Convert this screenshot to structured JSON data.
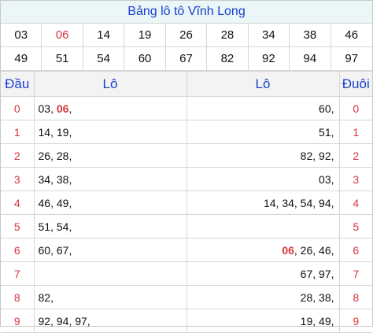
{
  "title": "Bảng lô tô Vĩnh Long",
  "numbers": [
    {
      "v": "03",
      "red": false
    },
    {
      "v": "06",
      "red": true
    },
    {
      "v": "14",
      "red": false
    },
    {
      "v": "19",
      "red": false
    },
    {
      "v": "26",
      "red": false
    },
    {
      "v": "28",
      "red": false
    },
    {
      "v": "34",
      "red": false
    },
    {
      "v": "38",
      "red": false
    },
    {
      "v": "46",
      "red": false
    },
    {
      "v": "49",
      "red": false
    },
    {
      "v": "51",
      "red": false
    },
    {
      "v": "54",
      "red": false
    },
    {
      "v": "60",
      "red": false
    },
    {
      "v": "67",
      "red": false
    },
    {
      "v": "82",
      "red": false
    },
    {
      "v": "92",
      "red": false
    },
    {
      "v": "94",
      "red": false
    },
    {
      "v": "97",
      "red": false
    }
  ],
  "headers": {
    "dau": "Đầu",
    "lo_left": "Lô",
    "lo_right": "Lô",
    "duoi": "Đuôi"
  },
  "rows": [
    {
      "dau": "0",
      "left": [
        {
          "t": "03",
          "hl": false
        },
        {
          "t": "06",
          "hl": true
        }
      ],
      "right": [
        {
          "t": "60",
          "hl": false
        }
      ],
      "duoi": "0"
    },
    {
      "dau": "1",
      "left": [
        {
          "t": "14",
          "hl": false
        },
        {
          "t": "19",
          "hl": false
        }
      ],
      "right": [
        {
          "t": "51",
          "hl": false
        }
      ],
      "duoi": "1"
    },
    {
      "dau": "2",
      "left": [
        {
          "t": "26",
          "hl": false
        },
        {
          "t": "28",
          "hl": false
        }
      ],
      "right": [
        {
          "t": "82",
          "hl": false
        },
        {
          "t": "92",
          "hl": false
        }
      ],
      "duoi": "2"
    },
    {
      "dau": "3",
      "left": [
        {
          "t": "34",
          "hl": false
        },
        {
          "t": "38",
          "hl": false
        }
      ],
      "right": [
        {
          "t": "03",
          "hl": false
        }
      ],
      "duoi": "3"
    },
    {
      "dau": "4",
      "left": [
        {
          "t": "46",
          "hl": false
        },
        {
          "t": "49",
          "hl": false
        }
      ],
      "right": [
        {
          "t": "14",
          "hl": false
        },
        {
          "t": "34",
          "hl": false
        },
        {
          "t": "54",
          "hl": false
        },
        {
          "t": "94",
          "hl": false
        }
      ],
      "duoi": "4"
    },
    {
      "dau": "5",
      "left": [
        {
          "t": "51",
          "hl": false
        },
        {
          "t": "54",
          "hl": false
        }
      ],
      "right": [],
      "duoi": "5"
    },
    {
      "dau": "6",
      "left": [
        {
          "t": "60",
          "hl": false
        },
        {
          "t": "67",
          "hl": false
        }
      ],
      "right": [
        {
          "t": "06",
          "hl": true
        },
        {
          "t": "26",
          "hl": false
        },
        {
          "t": "46",
          "hl": false
        }
      ],
      "duoi": "6"
    },
    {
      "dau": "7",
      "left": [],
      "right": [
        {
          "t": "67",
          "hl": false
        },
        {
          "t": "97",
          "hl": false
        }
      ],
      "duoi": "7"
    },
    {
      "dau": "8",
      "left": [
        {
          "t": "82",
          "hl": false
        }
      ],
      "right": [
        {
          "t": "28",
          "hl": false
        },
        {
          "t": "38",
          "hl": false
        }
      ],
      "duoi": "8"
    },
    {
      "dau": "9",
      "left": [
        {
          "t": "92",
          "hl": false
        },
        {
          "t": "94",
          "hl": false
        },
        {
          "t": "97",
          "hl": false
        }
      ],
      "right": [
        {
          "t": "19",
          "hl": false
        },
        {
          "t": "49",
          "hl": false
        }
      ],
      "duoi": "9"
    }
  ],
  "colors": {
    "accent": "#1a3fd0",
    "highlight": "#d9343a",
    "title_bg": "#eaf6f8"
  }
}
